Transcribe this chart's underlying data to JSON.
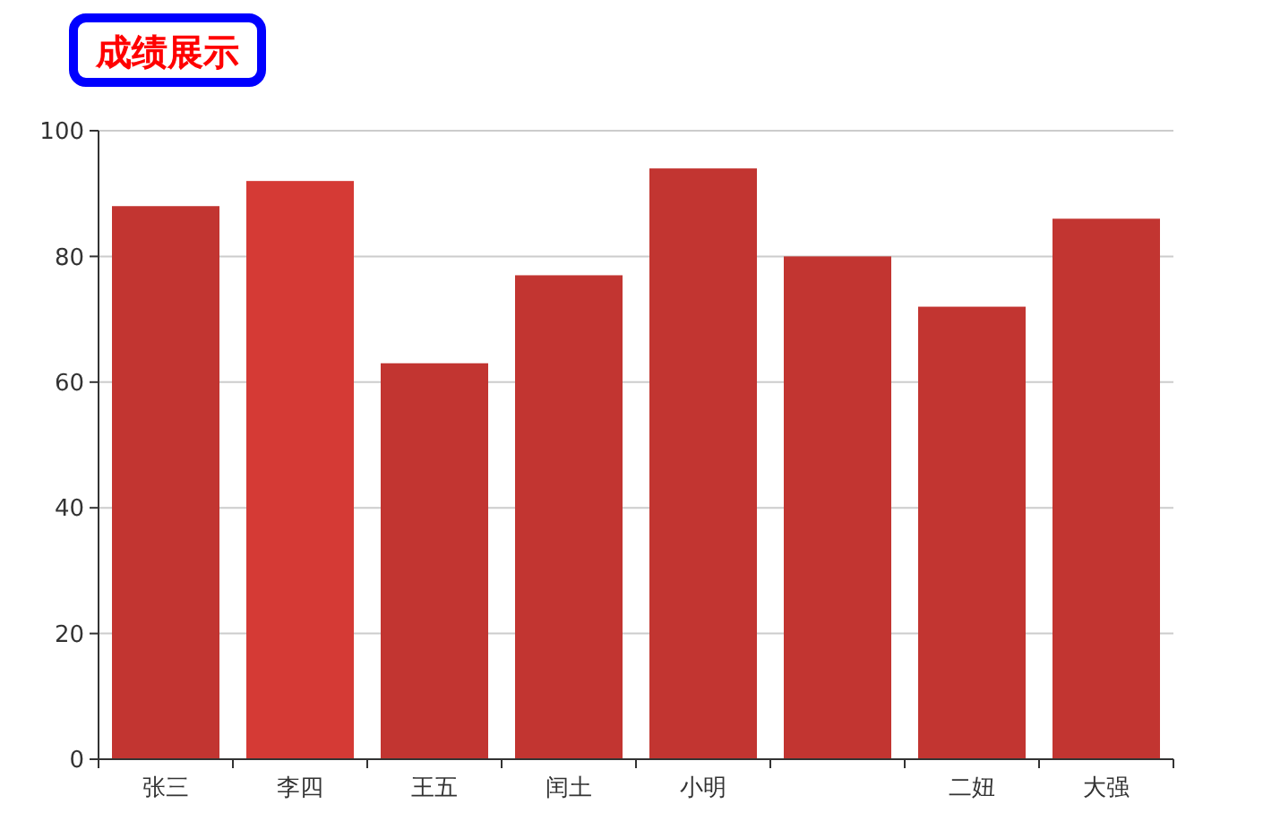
{
  "chart_data": {
    "type": "bar",
    "title": "成绩展示",
    "categories": [
      "张三",
      "李四",
      "王五",
      "闰土",
      "小明",
      null,
      "二妞",
      "大强"
    ],
    "values": [
      88,
      92,
      63,
      77,
      94,
      80,
      72,
      86
    ],
    "colors": [
      "#c23531",
      "#d53a35",
      "#c23531",
      "#c23531",
      "#c23531",
      "#c23531",
      "#c23531",
      "#c23531"
    ],
    "ylim": [
      0,
      100
    ],
    "yticks": [
      0,
      20,
      40,
      60,
      80,
      100
    ],
    "grid": "y"
  }
}
